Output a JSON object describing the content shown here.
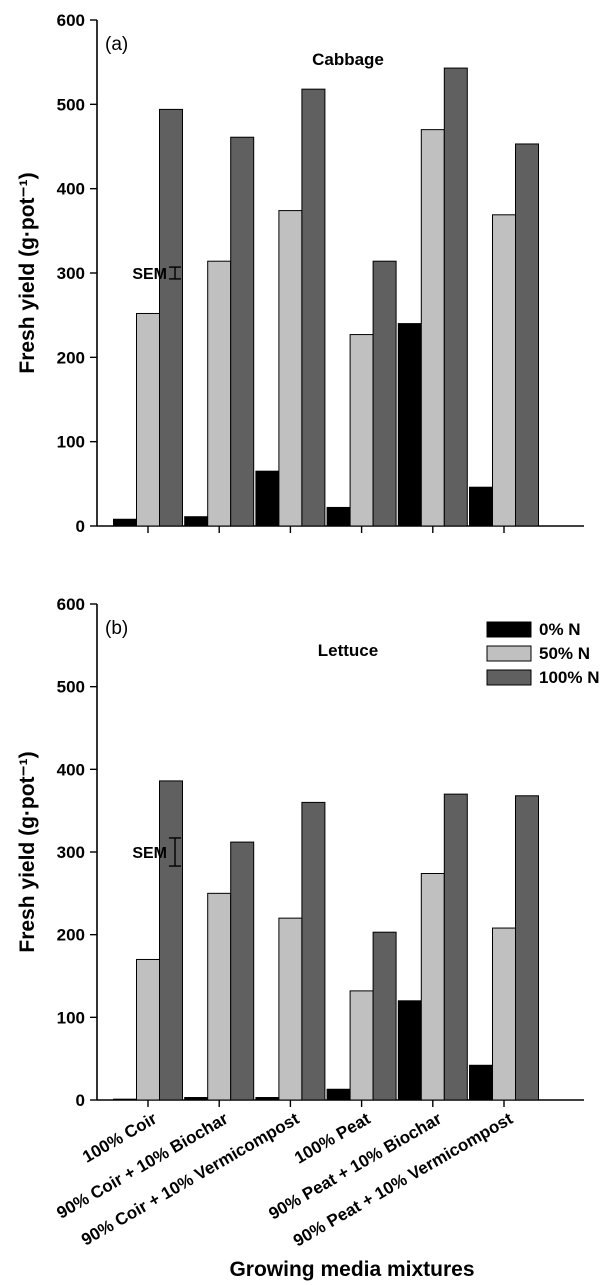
{
  "chart_data": [
    {
      "type": "bar",
      "panel_label": "(a)",
      "title": "Cabbage",
      "ylabel": "Fresh yield (g·pot⁻¹)",
      "ylim": [
        0,
        600
      ],
      "yticks": [
        "0",
        "100",
        "200",
        "300",
        "400",
        "500",
        "600"
      ],
      "categories": [
        "100% Coir",
        "90% Coir + 10% Biochar",
        "90% Coir + 10% Vermicompost",
        "100% Peat",
        "90% Peat + 10% Biochar",
        "90% Peat + 10% Vermicompost"
      ],
      "series": [
        {
          "name": "0% N",
          "color": "#000000",
          "values": [
            8,
            11,
            65,
            22,
            240,
            46
          ]
        },
        {
          "name": "50% N",
          "color": "#c0c0c0",
          "values": [
            252,
            314,
            374,
            227,
            470,
            369
          ]
        },
        {
          "name": "100% N",
          "color": "#606060",
          "values": [
            494,
            461,
            518,
            314,
            543,
            453
          ]
        }
      ],
      "sem": {
        "label": "SEM",
        "low": 293,
        "high": 307
      },
      "show_legend": false
    },
    {
      "type": "bar",
      "panel_label": "(b)",
      "title": "Lettuce",
      "ylabel": "Fresh yield (g·pot⁻¹)",
      "ylim": [
        0,
        600
      ],
      "yticks": [
        "0",
        "100",
        "200",
        "300",
        "400",
        "500",
        "600"
      ],
      "categories": [
        "100% Coir",
        "90% Coir + 10% Biochar",
        "90% Coir + 10% Vermicompost",
        "100% Peat",
        "90% Peat + 10% Biochar",
        "90% Peat + 10% Vermicompost"
      ],
      "series": [
        {
          "name": "0% N",
          "color": "#000000",
          "values": [
            1,
            3,
            3,
            13,
            120,
            42
          ]
        },
        {
          "name": "50% N",
          "color": "#c0c0c0",
          "values": [
            170,
            250,
            220,
            132,
            274,
            208
          ]
        },
        {
          "name": "100% N",
          "color": "#606060",
          "values": [
            386,
            312,
            360,
            203,
            370,
            368
          ]
        }
      ],
      "sem": {
        "label": "SEM",
        "low": 283,
        "high": 317
      },
      "show_legend": true,
      "legend_position": "top-right"
    }
  ],
  "xlabel": "Growing media mixtures"
}
